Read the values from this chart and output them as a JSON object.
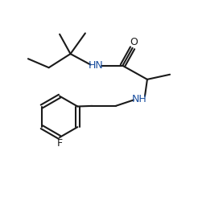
{
  "bg_color": "#ffffff",
  "line_color": "#1a1a1a",
  "text_color": "#1a1a1a",
  "nh_color": "#1a4fa0",
  "line_width": 1.5,
  "figsize": [
    2.46,
    2.54
  ],
  "dpi": 100,
  "xlim": [
    0,
    10
  ],
  "ylim": [
    0,
    10.3
  ]
}
